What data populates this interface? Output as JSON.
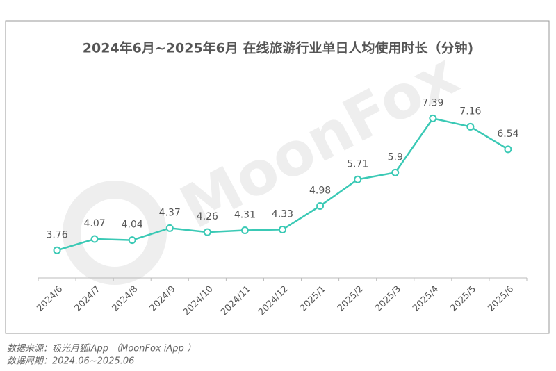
{
  "chart_data": {
    "type": "line",
    "title": "2024年6月~2025年6月 在线旅游行业单日人均使用时长（分钟)",
    "watermark": "MoonFox",
    "categories": [
      "2024/6",
      "2024/7",
      "2024/8",
      "2024/9",
      "2024/10",
      "2024/11",
      "2024/12",
      "2025/1",
      "2025/2",
      "2025/3",
      "2025/4",
      "2025/5",
      "2025/6"
    ],
    "values": [
      3.76,
      4.07,
      4.04,
      4.37,
      4.26,
      4.31,
      4.33,
      4.98,
      5.71,
      5.9,
      7.39,
      7.16,
      6.54
    ],
    "color": "#3ac9b5",
    "ylim": [
      3,
      8
    ]
  },
  "footer": {
    "source": "数据来源：极光月狐iApp （MoonFox iApp ）",
    "period": "数据周期：2024.06~2025.06"
  }
}
